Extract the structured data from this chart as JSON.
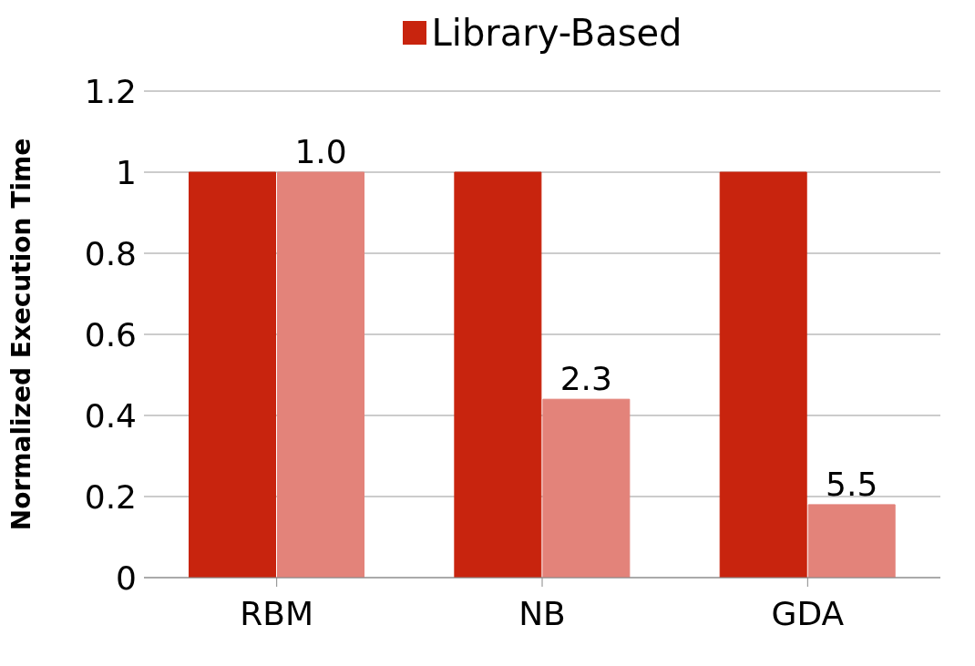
{
  "chart_data": {
    "type": "bar",
    "ylabel": "Normalized Execution Time",
    "categories": [
      "RBM",
      "NB",
      "GDA"
    ],
    "series": [
      {
        "name": "Library-Based",
        "color": "#c8240e",
        "values": [
          1,
          1,
          1
        ]
      },
      {
        "color": "#e3837a",
        "values": [
          1.0,
          0.44,
          0.18
        ]
      }
    ],
    "annotations": [
      {
        "text": "1.0",
        "x": "RBM",
        "y": 1.0
      },
      {
        "text": "2.3",
        "x": "NB",
        "y": 0.44
      },
      {
        "text": "5.5",
        "x": "GDA",
        "y": 0.18
      }
    ],
    "ylim": [
      0,
      1.2
    ],
    "yticks": [
      0,
      0.2,
      0.4,
      0.6,
      0.8,
      1,
      1.2
    ],
    "grid": "y",
    "legend": "top"
  }
}
